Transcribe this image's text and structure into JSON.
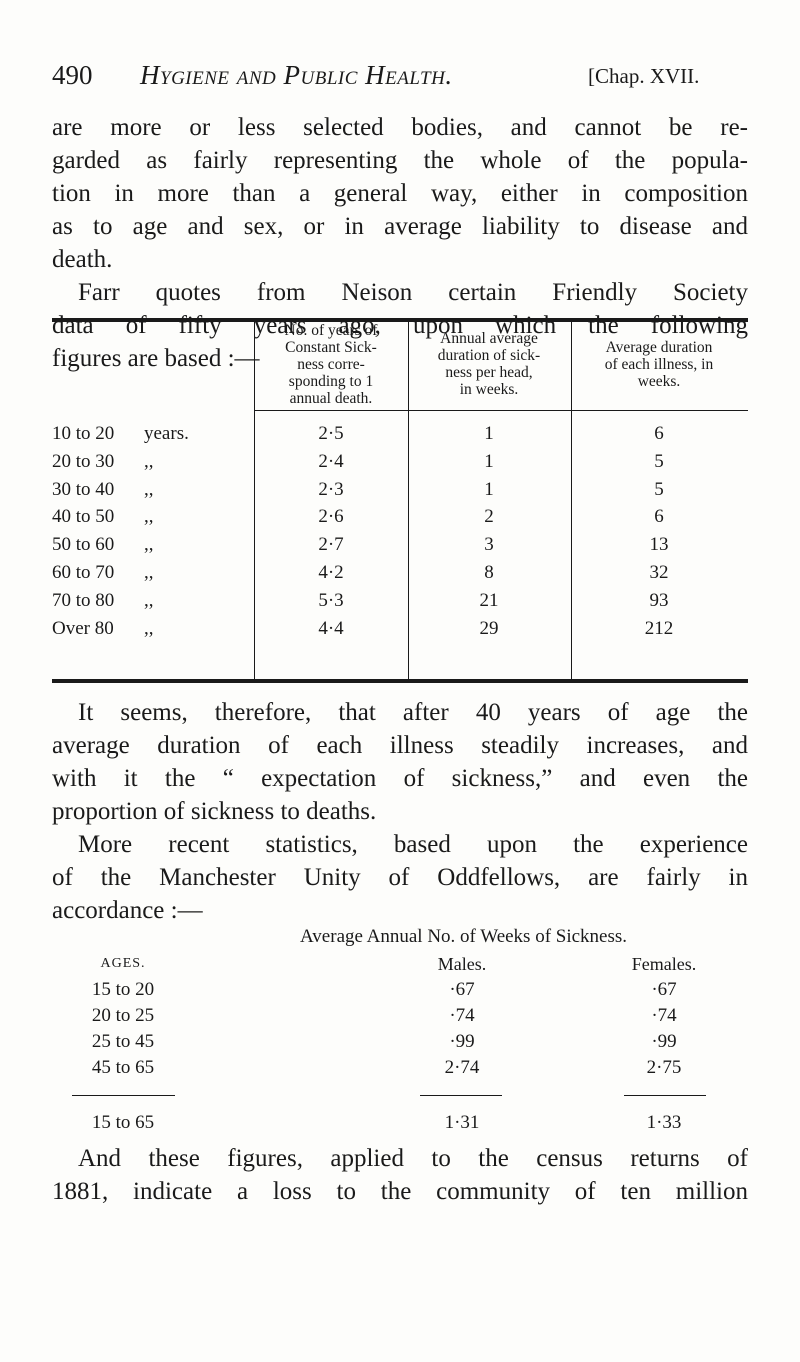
{
  "header": {
    "page_number": "490",
    "running_title": "Hygiene and Public Health.",
    "chapter": "[Chap. XVII."
  },
  "paragraphs": [
    {
      "lines": [
        "are more or less selected bodies, and cannot be re-",
        "garded as fairly representing the whole of the popula-",
        "tion in more than a general way, either in composition",
        "as to age and sex, or in average liability to disease and",
        "death."
      ]
    },
    {
      "lines": [
        "Farr quotes from Neison certain Friendly Society",
        "data of fifty years ago, upon which the following",
        "figures are based :—"
      ]
    }
  ],
  "table1": {
    "headers": [
      [
        "No. of years of",
        "Constant Sick-",
        "ness corre-",
        "sponding to 1",
        "annual death."
      ],
      [
        "Annual average",
        "duration of sick-",
        "ness per head,",
        "in weeks."
      ],
      [
        "Average duration",
        "of each illness, in",
        "weeks."
      ]
    ],
    "rows": [
      {
        "age": "10 to 20",
        "unit": "years.",
        "values": [
          "2·5",
          "1",
          "6"
        ]
      },
      {
        "age": "20 to 30",
        "unit": ",,",
        "values": [
          "2·4",
          "1",
          "5"
        ]
      },
      {
        "age": "30 to 40",
        "unit": ",,",
        "values": [
          "2·3",
          "1",
          "5"
        ]
      },
      {
        "age": "40 to 50",
        "unit": ",,",
        "values": [
          "2·6",
          "2",
          "6"
        ]
      },
      {
        "age": "50 to 60",
        "unit": ",,",
        "values": [
          "2·7",
          "3",
          "13"
        ]
      },
      {
        "age": "60 to 70",
        "unit": ",,",
        "values": [
          "4·2",
          "8",
          "32"
        ]
      },
      {
        "age": "70 to 80",
        "unit": ",,",
        "values": [
          "5·3",
          "21",
          "93"
        ]
      },
      {
        "age": "Over 80",
        "unit": ",,",
        "values": [
          "4·4",
          "29",
          "212"
        ]
      }
    ]
  },
  "paragraphs2": [
    {
      "lines": [
        "It seems, therefore, that after 40 years of age the",
        "average duration of each illness steadily increases, and",
        "with it the “ expectation of sickness,” and even the",
        "proportion of sickness to deaths."
      ]
    },
    {
      "lines": [
        "More recent statistics, based upon the experience",
        "of the Manchester Unity of Oddfellows, are fairly in",
        "accordance :—"
      ]
    }
  ],
  "table2": {
    "title": "Average Annual No. of Weeks of Sickness.",
    "headers": [
      "Ages.",
      "Males.",
      "Females."
    ],
    "rows": [
      [
        "15 to 20",
        "·67",
        "·67"
      ],
      [
        "20 to 25",
        "·74",
        "·74"
      ],
      [
        "25 to 45",
        "·99",
        "·99"
      ],
      [
        "45 to 65",
        "2·74",
        "2·75"
      ]
    ],
    "total": [
      "15 to 65",
      "1·31",
      "1·33"
    ]
  },
  "paragraphs3": [
    {
      "lines": [
        "And these figures, applied to the census returns of",
        "1881, indicate a loss to the community of ten million"
      ]
    }
  ]
}
